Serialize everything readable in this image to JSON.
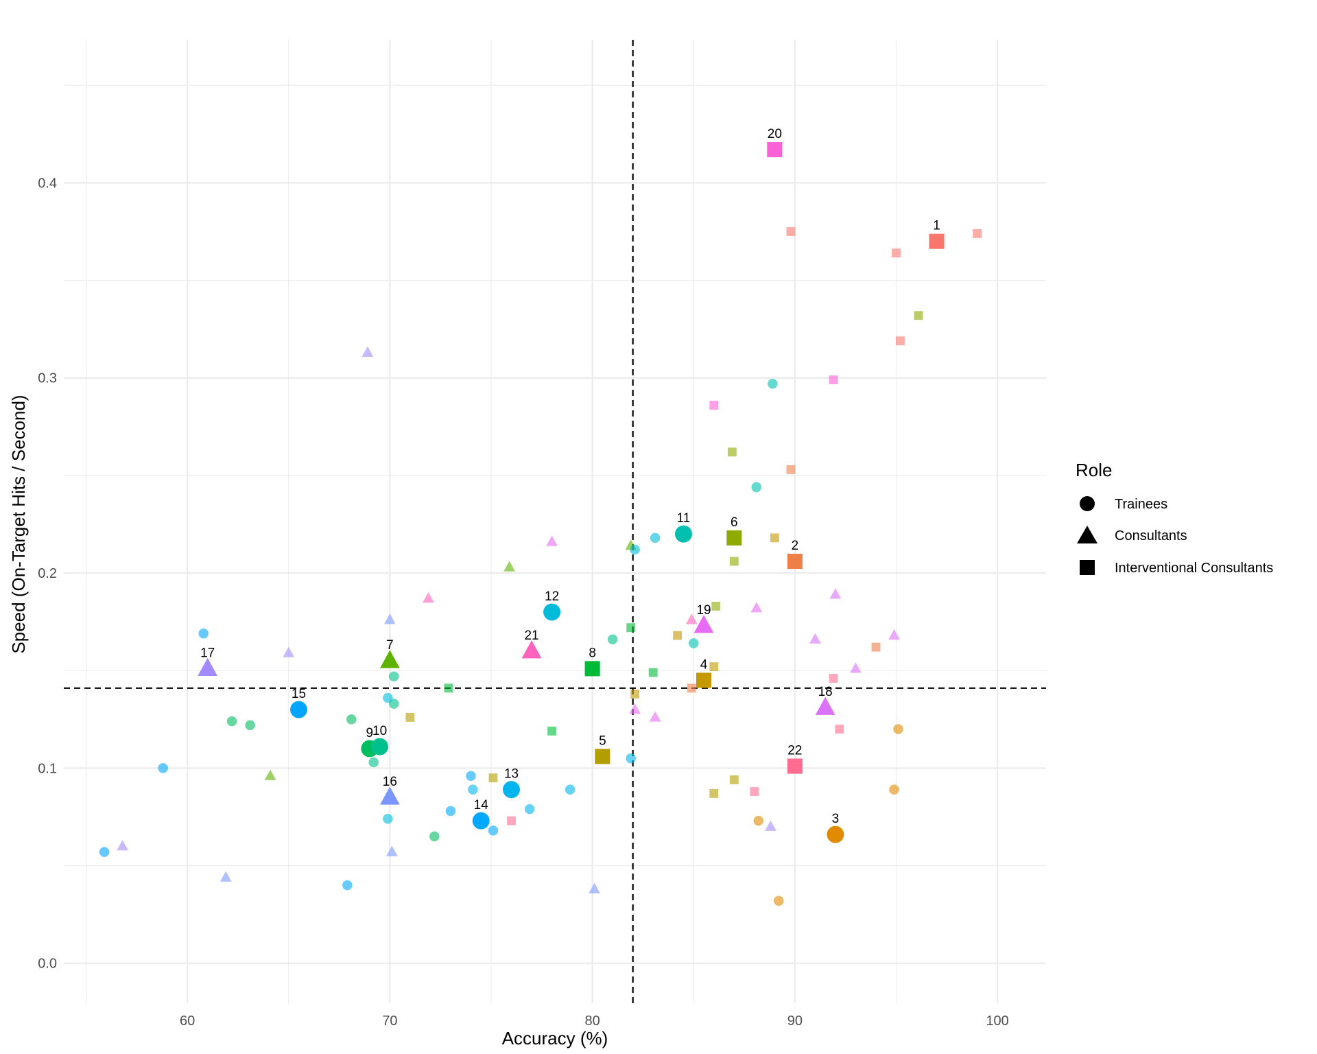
{
  "chart_data": {
    "type": "scatter",
    "title": "",
    "xlabel": "Accuracy (%)",
    "ylabel": "Speed (On-Target Hits / Second)",
    "xlim": [
      53.9,
      102.4
    ],
    "ylim": [
      -0.0205,
      0.4733
    ],
    "xticks": [
      60,
      70,
      80,
      90,
      100
    ],
    "yticks": [
      0.0,
      0.1,
      0.2,
      0.3,
      0.4
    ],
    "x_tick_labels": [
      "60",
      "70",
      "80",
      "90",
      "100"
    ],
    "y_tick_labels": [
      "0.0",
      "0.1",
      "0.2",
      "0.3",
      "0.4"
    ],
    "grid": true,
    "reference_lines": {
      "x": 82,
      "y": 0.141,
      "style": "dashed"
    },
    "legend": {
      "title": "Role",
      "position": "right",
      "entries": [
        {
          "label": "Trainees",
          "shape": "circle"
        },
        {
          "label": "Consultants",
          "shape": "triangle"
        },
        {
          "label": "Interventional Consultants",
          "shape": "square"
        }
      ]
    },
    "participants": [
      {
        "id": "1",
        "x": 97.0,
        "y": 0.37,
        "shape": "square",
        "color": "#F8766D"
      },
      {
        "id": "2",
        "x": 90.0,
        "y": 0.206,
        "shape": "square",
        "color": "#EF7F49"
      },
      {
        "id": "3",
        "x": 92.0,
        "y": 0.066,
        "shape": "circle",
        "color": "#E18A00"
      },
      {
        "id": "4",
        "x": 85.5,
        "y": 0.145,
        "shape": "square",
        "color": "#C49A00"
      },
      {
        "id": "5",
        "x": 80.5,
        "y": 0.106,
        "shape": "square",
        "color": "#B39E00"
      },
      {
        "id": "6",
        "x": 87.0,
        "y": 0.218,
        "shape": "square",
        "color": "#8FAA00"
      },
      {
        "id": "7",
        "x": 70.0,
        "y": 0.155,
        "shape": "triangle",
        "color": "#5EB300"
      },
      {
        "id": "8",
        "x": 80.0,
        "y": 0.151,
        "shape": "square",
        "color": "#00BA38"
      },
      {
        "id": "9",
        "x": 69.0,
        "y": 0.11,
        "shape": "circle",
        "color": "#00BD5F"
      },
      {
        "id": "10",
        "x": 69.5,
        "y": 0.111,
        "shape": "circle",
        "color": "#00C08B"
      },
      {
        "id": "11",
        "x": 84.5,
        "y": 0.22,
        "shape": "circle",
        "color": "#00BFAE"
      },
      {
        "id": "12",
        "x": 78.0,
        "y": 0.18,
        "shape": "circle",
        "color": "#00BCD8"
      },
      {
        "id": "13",
        "x": 76.0,
        "y": 0.089,
        "shape": "circle",
        "color": "#00B5EE"
      },
      {
        "id": "14",
        "x": 74.5,
        "y": 0.073,
        "shape": "circle",
        "color": "#00A9FF"
      },
      {
        "id": "15",
        "x": 65.5,
        "y": 0.13,
        "shape": "circle",
        "color": "#00A5FF"
      },
      {
        "id": "16",
        "x": 70.0,
        "y": 0.085,
        "shape": "triangle",
        "color": "#7997FF"
      },
      {
        "id": "17",
        "x": 61.0,
        "y": 0.151,
        "shape": "triangle",
        "color": "#A58AFF"
      },
      {
        "id": "18",
        "x": 91.5,
        "y": 0.131,
        "shape": "triangle",
        "color": "#DC71FA"
      },
      {
        "id": "19",
        "x": 85.5,
        "y": 0.173,
        "shape": "triangle",
        "color": "#E76BF3"
      },
      {
        "id": "20",
        "x": 89.0,
        "y": 0.417,
        "shape": "square",
        "color": "#FB61D7"
      },
      {
        "id": "21",
        "x": 77.0,
        "y": 0.16,
        "shape": "triangle",
        "color": "#FF62BC"
      },
      {
        "id": "22",
        "x": 90.0,
        "y": 0.101,
        "shape": "square",
        "color": "#FF6C91"
      }
    ],
    "trials": [
      {
        "x": 89.8,
        "y": 0.375,
        "shape": "square",
        "color": "#F8766D"
      },
      {
        "x": 95.0,
        "y": 0.364,
        "shape": "square",
        "color": "#F8766D"
      },
      {
        "x": 99.0,
        "y": 0.374,
        "shape": "square",
        "color": "#F8766D"
      },
      {
        "x": 95.2,
        "y": 0.319,
        "shape": "square",
        "color": "#F8766D"
      },
      {
        "x": 89.8,
        "y": 0.253,
        "shape": "square",
        "color": "#EF7F49"
      },
      {
        "x": 94.0,
        "y": 0.162,
        "shape": "square",
        "color": "#EF7F49"
      },
      {
        "x": 84.9,
        "y": 0.141,
        "shape": "square",
        "color": "#EF7F49"
      },
      {
        "x": 95.1,
        "y": 0.12,
        "shape": "circle",
        "color": "#E18A00"
      },
      {
        "x": 94.9,
        "y": 0.089,
        "shape": "circle",
        "color": "#E18A00"
      },
      {
        "x": 88.2,
        "y": 0.073,
        "shape": "circle",
        "color": "#E18A00"
      },
      {
        "x": 89.2,
        "y": 0.032,
        "shape": "circle",
        "color": "#E18A00"
      },
      {
        "x": 84.2,
        "y": 0.168,
        "shape": "square",
        "color": "#C49A00"
      },
      {
        "x": 86.0,
        "y": 0.152,
        "shape": "square",
        "color": "#C49A00"
      },
      {
        "x": 82.1,
        "y": 0.138,
        "shape": "square",
        "color": "#C49A00"
      },
      {
        "x": 89.0,
        "y": 0.218,
        "shape": "square",
        "color": "#C49A00"
      },
      {
        "x": 71.0,
        "y": 0.126,
        "shape": "square",
        "color": "#B39E00"
      },
      {
        "x": 75.1,
        "y": 0.095,
        "shape": "square",
        "color": "#B39E00"
      },
      {
        "x": 86.0,
        "y": 0.087,
        "shape": "square",
        "color": "#B39E00"
      },
      {
        "x": 87.0,
        "y": 0.094,
        "shape": "square",
        "color": "#B39E00"
      },
      {
        "x": 96.1,
        "y": 0.332,
        "shape": "square",
        "color": "#8FAA00"
      },
      {
        "x": 86.9,
        "y": 0.262,
        "shape": "square",
        "color": "#8FAA00"
      },
      {
        "x": 87.0,
        "y": 0.206,
        "shape": "square",
        "color": "#8FAA00"
      },
      {
        "x": 86.1,
        "y": 0.183,
        "shape": "square",
        "color": "#8FAA00"
      },
      {
        "x": 75.9,
        "y": 0.203,
        "shape": "triangle",
        "color": "#5EB300"
      },
      {
        "x": 81.9,
        "y": 0.214,
        "shape": "triangle",
        "color": "#5EB300"
      },
      {
        "x": 64.1,
        "y": 0.096,
        "shape": "triangle",
        "color": "#5EB300"
      },
      {
        "x": 81.9,
        "y": 0.172,
        "shape": "square",
        "color": "#00BA38"
      },
      {
        "x": 83.0,
        "y": 0.149,
        "shape": "square",
        "color": "#00BA38"
      },
      {
        "x": 72.9,
        "y": 0.141,
        "shape": "square",
        "color": "#00BA38"
      },
      {
        "x": 78.0,
        "y": 0.119,
        "shape": "square",
        "color": "#00BA38"
      },
      {
        "x": 62.2,
        "y": 0.124,
        "shape": "circle",
        "color": "#00BD5F"
      },
      {
        "x": 63.1,
        "y": 0.122,
        "shape": "circle",
        "color": "#00BD5F"
      },
      {
        "x": 68.1,
        "y": 0.125,
        "shape": "circle",
        "color": "#00BD5F"
      },
      {
        "x": 72.2,
        "y": 0.065,
        "shape": "circle",
        "color": "#00BD5F"
      },
      {
        "x": 70.2,
        "y": 0.147,
        "shape": "circle",
        "color": "#00C08B"
      },
      {
        "x": 70.2,
        "y": 0.133,
        "shape": "circle",
        "color": "#00C08B"
      },
      {
        "x": 69.2,
        "y": 0.103,
        "shape": "circle",
        "color": "#00C08B"
      },
      {
        "x": 81.0,
        "y": 0.166,
        "shape": "circle",
        "color": "#00C08B"
      },
      {
        "x": 88.9,
        "y": 0.297,
        "shape": "circle",
        "color": "#00BFAE"
      },
      {
        "x": 88.1,
        "y": 0.244,
        "shape": "circle",
        "color": "#00BFAE"
      },
      {
        "x": 85.0,
        "y": 0.164,
        "shape": "circle",
        "color": "#00BFAE"
      },
      {
        "x": 83.1,
        "y": 0.218,
        "shape": "circle",
        "color": "#00BCD8"
      },
      {
        "x": 82.1,
        "y": 0.212,
        "shape": "circle",
        "color": "#00BCD8"
      },
      {
        "x": 69.9,
        "y": 0.136,
        "shape": "circle",
        "color": "#00BCD8"
      },
      {
        "x": 69.9,
        "y": 0.074,
        "shape": "circle",
        "color": "#00BCD8"
      },
      {
        "x": 74.1,
        "y": 0.089,
        "shape": "circle",
        "color": "#00B5EE"
      },
      {
        "x": 78.9,
        "y": 0.089,
        "shape": "circle",
        "color": "#00B5EE"
      },
      {
        "x": 76.9,
        "y": 0.079,
        "shape": "circle",
        "color": "#00B5EE"
      },
      {
        "x": 81.9,
        "y": 0.105,
        "shape": "circle",
        "color": "#00B5EE"
      },
      {
        "x": 74.0,
        "y": 0.096,
        "shape": "circle",
        "color": "#00A9FF"
      },
      {
        "x": 73.0,
        "y": 0.078,
        "shape": "circle",
        "color": "#00A9FF"
      },
      {
        "x": 75.1,
        "y": 0.068,
        "shape": "circle",
        "color": "#00A9FF"
      },
      {
        "x": 67.9,
        "y": 0.04,
        "shape": "circle",
        "color": "#00A9FF"
      },
      {
        "x": 60.8,
        "y": 0.169,
        "shape": "circle",
        "color": "#00A5FF"
      },
      {
        "x": 58.8,
        "y": 0.1,
        "shape": "circle",
        "color": "#00A5FF"
      },
      {
        "x": 55.9,
        "y": 0.057,
        "shape": "circle",
        "color": "#00A5FF"
      },
      {
        "x": 70.0,
        "y": 0.176,
        "shape": "triangle",
        "color": "#7997FF"
      },
      {
        "x": 70.1,
        "y": 0.057,
        "shape": "triangle",
        "color": "#7997FF"
      },
      {
        "x": 61.9,
        "y": 0.044,
        "shape": "triangle",
        "color": "#7997FF"
      },
      {
        "x": 80.1,
        "y": 0.038,
        "shape": "triangle",
        "color": "#7997FF"
      },
      {
        "x": 68.9,
        "y": 0.313,
        "shape": "triangle",
        "color": "#A58AFF"
      },
      {
        "x": 65.0,
        "y": 0.159,
        "shape": "triangle",
        "color": "#A58AFF"
      },
      {
        "x": 56.8,
        "y": 0.06,
        "shape": "triangle",
        "color": "#A58AFF"
      },
      {
        "x": 88.8,
        "y": 0.07,
        "shape": "triangle",
        "color": "#A58AFF"
      },
      {
        "x": 92.0,
        "y": 0.189,
        "shape": "triangle",
        "color": "#DC71FA"
      },
      {
        "x": 91.0,
        "y": 0.166,
        "shape": "triangle",
        "color": "#DC71FA"
      },
      {
        "x": 94.9,
        "y": 0.168,
        "shape": "triangle",
        "color": "#DC71FA"
      },
      {
        "x": 93.0,
        "y": 0.151,
        "shape": "triangle",
        "color": "#DC71FA"
      },
      {
        "x": 78.0,
        "y": 0.216,
        "shape": "triangle",
        "color": "#E76BF3"
      },
      {
        "x": 88.1,
        "y": 0.182,
        "shape": "triangle",
        "color": "#E76BF3"
      },
      {
        "x": 82.1,
        "y": 0.13,
        "shape": "triangle",
        "color": "#E76BF3"
      },
      {
        "x": 83.1,
        "y": 0.126,
        "shape": "triangle",
        "color": "#E76BF3"
      },
      {
        "x": 86.0,
        "y": 0.286,
        "shape": "square",
        "color": "#FB61D7"
      },
      {
        "x": 91.9,
        "y": 0.299,
        "shape": "square",
        "color": "#FB61D7"
      },
      {
        "x": 71.9,
        "y": 0.187,
        "shape": "triangle",
        "color": "#FF62BC"
      },
      {
        "x": 84.9,
        "y": 0.176,
        "shape": "triangle",
        "color": "#FF62BC"
      },
      {
        "x": 91.9,
        "y": 0.146,
        "shape": "square",
        "color": "#FF6C91"
      },
      {
        "x": 92.2,
        "y": 0.12,
        "shape": "square",
        "color": "#FF6C91"
      },
      {
        "x": 88.0,
        "y": 0.088,
        "shape": "square",
        "color": "#FF6C91"
      },
      {
        "x": 76.0,
        "y": 0.073,
        "shape": "square",
        "color": "#FF6C91"
      }
    ]
  }
}
